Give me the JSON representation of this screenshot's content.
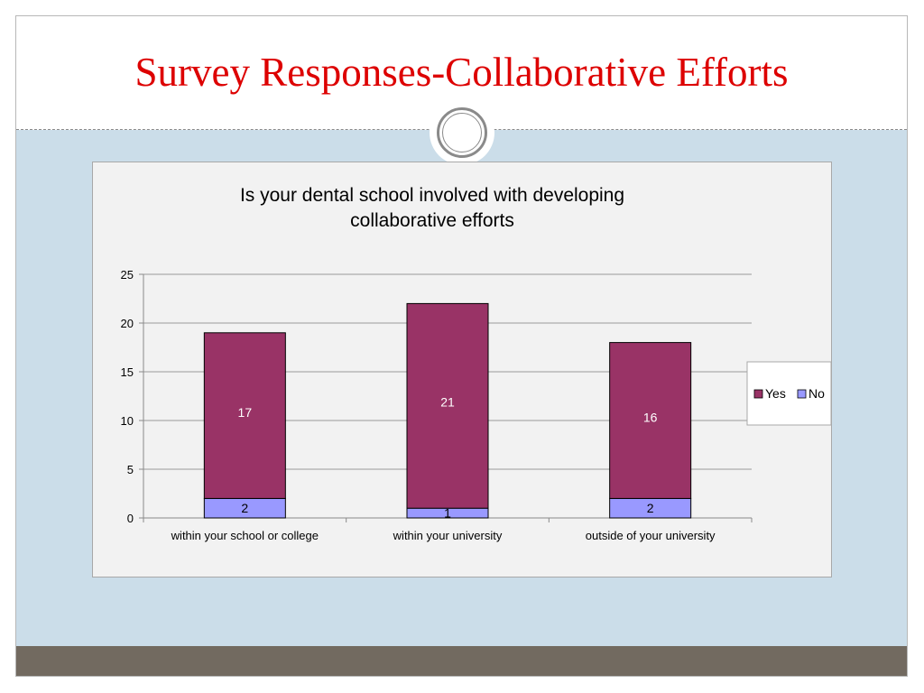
{
  "slide": {
    "title": "Survey Responses-Collaborative Efforts"
  },
  "colors": {
    "title_red": "#dd0000",
    "band_blue": "#cbdde9",
    "footer": "#726a60",
    "yes": "#993366",
    "no": "#9999ff"
  },
  "chart_data": {
    "type": "bar",
    "stacked": true,
    "title_lines": [
      "Is your dental school involved with developing",
      "collaborative efforts"
    ],
    "categories": [
      "within your school or college",
      "within your university",
      "outside of your university"
    ],
    "series": [
      {
        "name": "No",
        "values": [
          2,
          1,
          2
        ],
        "color": "#9999ff"
      },
      {
        "name": "Yes",
        "values": [
          17,
          21,
          16
        ],
        "color": "#993366"
      }
    ],
    "ylim": [
      0,
      25
    ],
    "yticks": [
      0,
      5,
      10,
      15,
      20,
      25
    ],
    "grid": true,
    "legend": {
      "placement": "right",
      "entries": [
        "Yes",
        "No"
      ]
    },
    "data_labels": true
  }
}
